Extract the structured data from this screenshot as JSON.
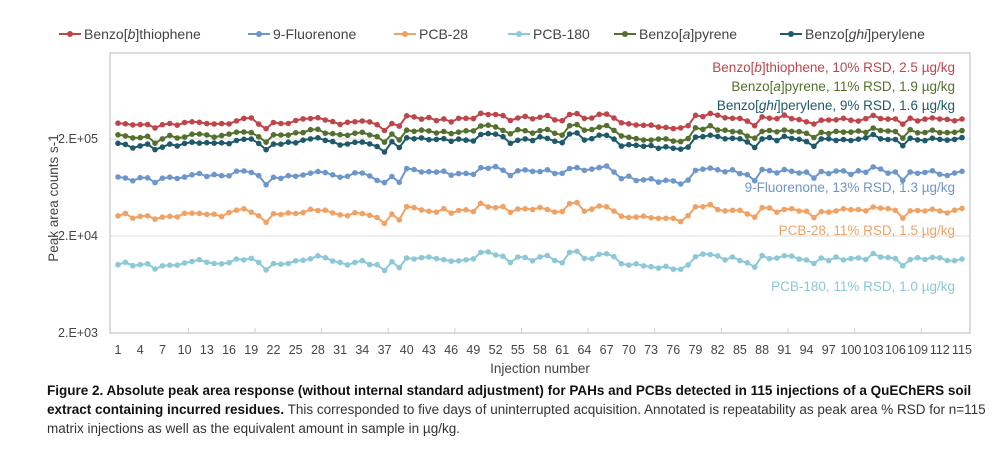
{
  "chart_data": {
    "type": "line",
    "title": "",
    "xlabel": "Injection number",
    "ylabel": "Peak area counts s-1",
    "yscale": "log",
    "ylim": [
      2000,
      1540000
    ],
    "y_ticks": [
      {
        "value": 2000,
        "label": "2.E+03"
      },
      {
        "value": 20000,
        "label": "2.E+04"
      },
      {
        "value": 200000,
        "label": "2.E+05"
      }
    ],
    "x_range": [
      1,
      115
    ],
    "x_tick_labels": [
      "1",
      "4",
      "7",
      "10",
      "13",
      "16",
      "19",
      "22",
      "25",
      "28",
      "31",
      "34",
      "37",
      "40",
      "43",
      "46",
      "49",
      "52",
      "55",
      "58",
      "61",
      "64",
      "67",
      "70",
      "73",
      "76",
      "79",
      "82",
      "85",
      "88",
      "91",
      "94",
      "97",
      "100",
      "103",
      "106",
      "109",
      "112",
      "115"
    ],
    "grid": "horizontal",
    "legend_position": "top",
    "series": [
      {
        "name": "Benzo[b]thiophene",
        "color": "#c0454a",
        "annotation": "Benzo[b]thiophene, 10% RSD, 2.5 µg/kg",
        "base": 290000,
        "rsd": 0.07,
        "seed": 1
      },
      {
        "name": "9-Fluorenone",
        "color": "#6d96cc",
        "annotation": "9-Fluorenone, 13% RSD, 1.3 µg/kg",
        "base": 82000,
        "rsd": 0.09,
        "seed": 2
      },
      {
        "name": "PCB-28",
        "color": "#f0a264",
        "annotation": "PCB-28, 11% RSD, 1.5 µg/kg",
        "base": 33000,
        "rsd": 0.08,
        "seed": 3
      },
      {
        "name": "PCB-180",
        "color": "#8cc8d8",
        "annotation": "PCB-180, 11% RSD, 1.0 µg/kg",
        "base": 10500,
        "rsd": 0.08,
        "seed": 4
      },
      {
        "name": "Benzo[a]pyrene",
        "color": "#55702e",
        "annotation": "Benzo[a]pyrene, 11% RSD, 1.9 µg/kg",
        "base": 215000,
        "rsd": 0.07,
        "seed": 5
      },
      {
        "name": "Benzo[ghi]perylene",
        "color": "#1e5a6a",
        "annotation": "Benzo[ghi]perylene, 9% RSD, 1.6 µg/kg",
        "base": 178000,
        "rsd": 0.06,
        "seed": 6
      }
    ],
    "common_profile": [
      0.0,
      0.0,
      -0.03,
      -0.02,
      0.0,
      -0.06,
      -0.02,
      -0.01,
      -0.02,
      0.0,
      0.01,
      0.02,
      0.0,
      0.0,
      0.0,
      0.01,
      0.04,
      0.05,
      0.04,
      0.0,
      -0.07,
      0.0,
      0.0,
      0.01,
      0.02,
      0.03,
      0.05,
      0.06,
      0.04,
      0.02,
      0.0,
      0.0,
      0.02,
      0.03,
      0.0,
      -0.02,
      -0.07,
      0.01,
      -0.04,
      0.07,
      0.06,
      0.05,
      0.05,
      0.04,
      0.05,
      0.03,
      0.04,
      0.05,
      0.04,
      0.11,
      0.1,
      0.09,
      0.07,
      0.02,
      0.05,
      0.06,
      0.04,
      0.06,
      0.07,
      0.04,
      0.02,
      0.1,
      0.11,
      0.05,
      0.06,
      0.09,
      0.1,
      0.05,
      -0.01,
      -0.01,
      -0.02,
      -0.03,
      -0.03,
      -0.04,
      -0.04,
      -0.05,
      -0.06,
      -0.02,
      0.08,
      0.08,
      0.09,
      0.07,
      0.05,
      0.05,
      0.04,
      0.01,
      -0.03,
      0.06,
      0.06,
      0.04,
      0.07,
      0.06,
      0.05,
      0.03,
      -0.02,
      0.04,
      0.04,
      0.05,
      0.05,
      0.04,
      0.04,
      0.05,
      0.09,
      0.06,
      0.05,
      0.04,
      -0.02,
      0.05,
      0.04,
      0.04,
      0.05,
      0.04,
      0.03,
      0.04,
      0.06
    ]
  },
  "legend": [
    {
      "pre": "Benzo[",
      "ital": "b",
      "post": "]thiophene"
    },
    {
      "pre": "9-Fluorenone",
      "ital": "",
      "post": ""
    },
    {
      "pre": "PCB-28",
      "ital": "",
      "post": ""
    },
    {
      "pre": "PCB-180",
      "ital": "",
      "post": ""
    },
    {
      "pre": "Benzo[",
      "ital": "a",
      "post": "]pyrene"
    },
    {
      "pre": "Benzo[",
      "ital": "ghi",
      "post": "]perylene"
    }
  ],
  "annotations": [
    {
      "pre": "Benzo[",
      "ital": "b",
      "post": "]thiophene, 10% RSD, 2.5 µg/kg"
    },
    {
      "pre": "Benzo[",
      "ital": "a",
      "post": "]pyrene, 11% RSD, 1.9 µg/kg"
    },
    {
      "pre": "Benzo[",
      "ital": "ghi",
      "post": "]perylene, 9% RSD, 1.6 µg/kg"
    },
    {
      "pre": "9-Fluorenone, 13% RSD, 1.3 µg/kg",
      "ital": "",
      "post": ""
    },
    {
      "pre": "PCB-28, 11% RSD, 1.5 µg/kg",
      "ital": "",
      "post": ""
    },
    {
      "pre": "PCB-180, 11% RSD, 1.0 µg/kg",
      "ital": "",
      "post": ""
    }
  ],
  "caption": {
    "bold": "Figure 2. Absolute peak area response (without internal standard adjustment) for PAHs and PCBs detected in 115 injections of a QuEChERS soil extract containing incurred residues.",
    "normal": " This corresponded to five days of uninterrupted acquisition. Annotated is repeatability as peak area % RSD for n=115 matrix injections as well as the equivalent amount in sample in µg/kg."
  }
}
